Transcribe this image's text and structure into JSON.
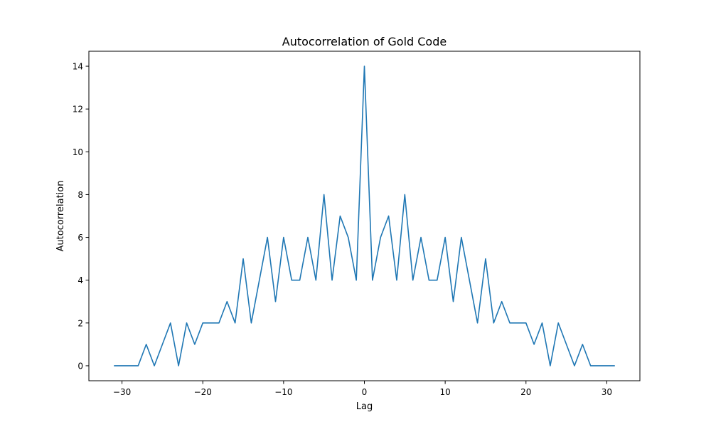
{
  "chart_data": {
    "type": "line",
    "title": "Autocorrelation of Gold Code",
    "xlabel": "Lag",
    "ylabel": "Autocorrelation",
    "xlim": [
      -34.1,
      34.1
    ],
    "ylim": [
      -0.7,
      14.7
    ],
    "xticks": [
      -30,
      -20,
      -10,
      0,
      10,
      20,
      30
    ],
    "xtick_labels": [
      "−30",
      "−20",
      "−10",
      "0",
      "10",
      "20",
      "30"
    ],
    "yticks": [
      0,
      2,
      4,
      6,
      8,
      10,
      12,
      14
    ],
    "ytick_labels": [
      "0",
      "2",
      "4",
      "6",
      "8",
      "10",
      "12",
      "14"
    ],
    "grid": false,
    "series": [
      {
        "color": "#1f77b4",
        "x": [
          -31,
          -30,
          -29,
          -28,
          -27,
          -26,
          -25,
          -24,
          -23,
          -22,
          -21,
          -20,
          -19,
          -18,
          -17,
          -16,
          -15,
          -14,
          -13,
          -12,
          -11,
          -10,
          -9,
          -8,
          -7,
          -6,
          -5,
          -4,
          -3,
          -2,
          -1,
          0,
          1,
          2,
          3,
          4,
          5,
          6,
          7,
          8,
          9,
          10,
          11,
          12,
          13,
          14,
          15,
          16,
          17,
          18,
          19,
          20,
          21,
          22,
          23,
          24,
          25,
          26,
          27,
          28,
          29,
          30,
          31
        ],
        "y": [
          0,
          0,
          0,
          0,
          1,
          0,
          1,
          2,
          0,
          2,
          1,
          2,
          2,
          2,
          3,
          2,
          5,
          2,
          4,
          6,
          3,
          6,
          4,
          4,
          6,
          4,
          8,
          4,
          7,
          6,
          4,
          14,
          4,
          6,
          7,
          4,
          8,
          4,
          6,
          4,
          4,
          6,
          3,
          6,
          4,
          2,
          5,
          2,
          3,
          2,
          2,
          2,
          1,
          2,
          0,
          2,
          1,
          0,
          1,
          0,
          0,
          0,
          0
        ]
      }
    ]
  }
}
